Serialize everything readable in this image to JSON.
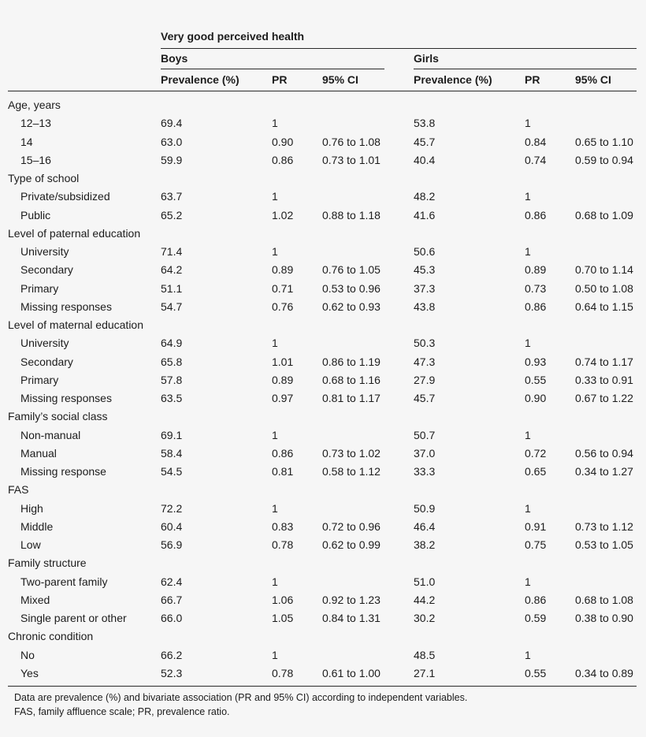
{
  "header": {
    "spanner": "Very good perceived health",
    "groups": [
      "Boys",
      "Girls"
    ],
    "columns": [
      "Prevalence (%)",
      "PR",
      "95% CI",
      "Prevalence (%)",
      "PR",
      "95% CI"
    ]
  },
  "rows": [
    {
      "label": "Age, years",
      "group": true
    },
    {
      "label": "12–13",
      "v": [
        "69.4",
        "1",
        "",
        "53.8",
        "1",
        ""
      ]
    },
    {
      "label": "14",
      "v": [
        "63.0",
        "0.90",
        "0.76 to 1.08",
        "45.7",
        "0.84",
        "0.65 to 1.10"
      ]
    },
    {
      "label": "15–16",
      "v": [
        "59.9",
        "0.86",
        "0.73 to 1.01",
        "40.4",
        "0.74",
        "0.59 to 0.94"
      ]
    },
    {
      "label": "Type of school",
      "group": true
    },
    {
      "label": "Private/subsidized",
      "v": [
        "63.7",
        "1",
        "",
        "48.2",
        "1",
        ""
      ]
    },
    {
      "label": "Public",
      "v": [
        "65.2",
        "1.02",
        "0.88 to 1.18",
        "41.6",
        "0.86",
        "0.68 to 1.09"
      ]
    },
    {
      "label": "Level of paternal education",
      "group": true
    },
    {
      "label": "University",
      "v": [
        "71.4",
        "1",
        "",
        "50.6",
        "1",
        ""
      ]
    },
    {
      "label": "Secondary",
      "v": [
        "64.2",
        "0.89",
        "0.76 to 1.05",
        "45.3",
        "0.89",
        "0.70 to 1.14"
      ]
    },
    {
      "label": "Primary",
      "v": [
        "51.1",
        "0.71",
        "0.53 to 0.96",
        "37.3",
        "0.73",
        "0.50 to 1.08"
      ]
    },
    {
      "label": "Missing responses",
      "v": [
        "54.7",
        "0.76",
        "0.62 to 0.93",
        "43.8",
        "0.86",
        "0.64 to 1.15"
      ]
    },
    {
      "label": "Level of maternal education",
      "group": true
    },
    {
      "label": "University",
      "v": [
        "64.9",
        "1",
        "",
        "50.3",
        "1",
        ""
      ]
    },
    {
      "label": "Secondary",
      "v": [
        "65.8",
        "1.01",
        "0.86 to 1.19",
        "47.3",
        "0.93",
        "0.74 to 1.17"
      ]
    },
    {
      "label": "Primary",
      "v": [
        "57.8",
        "0.89",
        "0.68 to 1.16",
        "27.9",
        "0.55",
        "0.33 to 0.91"
      ]
    },
    {
      "label": "Missing responses",
      "v": [
        "63.5",
        "0.97",
        "0.81 to 1.17",
        "45.7",
        "0.90",
        "0.67 to 1.22"
      ]
    },
    {
      "label": "Family’s social class",
      "group": true
    },
    {
      "label": "Non-manual",
      "v": [
        "69.1",
        "1",
        "",
        "50.7",
        "1",
        ""
      ]
    },
    {
      "label": "Manual",
      "v": [
        "58.4",
        "0.86",
        "0.73 to 1.02",
        "37.0",
        "0.72",
        "0.56 to 0.94"
      ]
    },
    {
      "label": "Missing response",
      "v": [
        "54.5",
        "0.81",
        "0.58 to 1.12",
        "33.3",
        "0.65",
        "0.34 to 1.27"
      ]
    },
    {
      "label": "FAS",
      "group": true
    },
    {
      "label": "High",
      "v": [
        "72.2",
        "1",
        "",
        "50.9",
        "1",
        ""
      ]
    },
    {
      "label": "Middle",
      "v": [
        "60.4",
        "0.83",
        "0.72 to 0.96",
        "46.4",
        "0.91",
        "0.73 to 1.12"
      ]
    },
    {
      "label": "Low",
      "v": [
        "56.9",
        "0.78",
        "0.62 to 0.99",
        "38.2",
        "0.75",
        "0.53 to 1.05"
      ]
    },
    {
      "label": "Family structure",
      "group": true
    },
    {
      "label": "Two-parent family",
      "v": [
        "62.4",
        "1",
        "",
        "51.0",
        "1",
        ""
      ]
    },
    {
      "label": "Mixed",
      "v": [
        "66.7",
        "1.06",
        "0.92 to 1.23",
        "44.2",
        "0.86",
        "0.68 to 1.08"
      ]
    },
    {
      "label": "Single parent or other",
      "v": [
        "66.0",
        "1.05",
        "0.84 to 1.31",
        "30.2",
        "0.59",
        "0.38 to 0.90"
      ]
    },
    {
      "label": "Chronic condition",
      "group": true
    },
    {
      "label": "No",
      "v": [
        "66.2",
        "1",
        "",
        "48.5",
        "1",
        ""
      ]
    },
    {
      "label": "Yes",
      "v": [
        "52.3",
        "0.78",
        "0.61 to 1.00",
        "27.1",
        "0.55",
        "0.34 to 0.89"
      ]
    }
  ],
  "footnotes": [
    "Data are prevalence (%) and bivariate association (PR and 95% CI) according to independent variables.",
    "FAS, family affluence scale; PR, prevalence ratio."
  ]
}
